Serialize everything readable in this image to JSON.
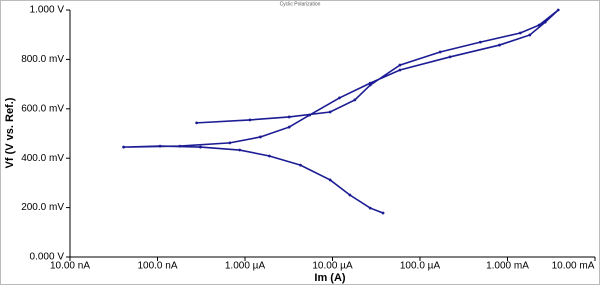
{
  "chart_data": {
    "type": "line",
    "title": "Cyclic Polarization",
    "x_label": "Im (A)",
    "y_label": "Vf (V vs. Ref.)",
    "xscale": "log",
    "grid": false,
    "markers": true,
    "xlim": [
      1e-08,
      0.01
    ],
    "xticks": [
      {
        "value": 1e-08,
        "label": "10.00 nA"
      },
      {
        "value": 1e-07,
        "label": "100.0 nA"
      },
      {
        "value": 1e-06,
        "label": "1.000 µA"
      },
      {
        "value": 1e-05,
        "label": "10.00 µA"
      },
      {
        "value": 0.0001,
        "label": "100.0 µA"
      },
      {
        "value": 0.001,
        "label": "1.000 mA"
      },
      {
        "value": 0.01,
        "label": "10.00 mA"
      }
    ],
    "ylim": [
      0,
      1
    ],
    "yticks": [
      {
        "value": 0,
        "label": "0.000 V"
      },
      {
        "value": 0.2,
        "label": "200.0 mV"
      },
      {
        "value": 0.4,
        "label": "400.0 mV"
      },
      {
        "value": 0.6,
        "label": "600.0 mV"
      },
      {
        "value": 0.8,
        "label": "800.0 mV"
      },
      {
        "value": 1,
        "label": "1.000 V"
      }
    ],
    "series": [
      {
        "color": "#1c1c94",
        "x": [
          3.78e-05,
          2.7e-05,
          1.58e-05,
          9.4e-06,
          4.3e-06,
          1.9e-06,
          8.7e-07,
          3.1e-07,
          1.07e-07,
          4.1e-08,
          1.8e-07,
          6.7e-07,
          1.5e-06,
          3.2e-06,
          5.5e-06,
          1.2e-05,
          2.7e-05,
          5.9e-05,
          0.00022,
          0.00081,
          0.0018,
          0.0027,
          0.0038,
          0.0023,
          0.0014,
          0.00049,
          0.00017,
          5.9e-05,
          2.7e-05,
          1.8e-05,
          9.4e-06,
          3.2e-06,
          1.14e-06,
          2.8e-07
        ],
        "values": [
          0.178,
          0.198,
          0.251,
          0.312,
          0.372,
          0.409,
          0.433,
          0.445,
          0.449,
          0.445,
          0.449,
          0.462,
          0.486,
          0.526,
          0.575,
          0.644,
          0.704,
          0.757,
          0.81,
          0.858,
          0.899,
          0.951,
          1.0,
          0.939,
          0.907,
          0.87,
          0.83,
          0.777,
          0.696,
          0.636,
          0.587,
          0.567,
          0.555,
          0.543
        ]
      }
    ]
  }
}
